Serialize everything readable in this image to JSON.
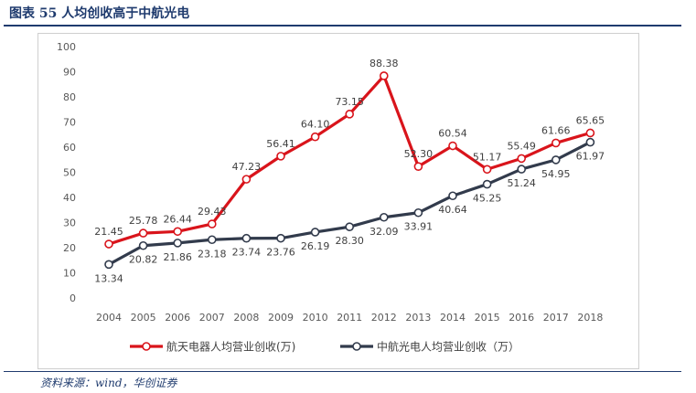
{
  "figure": {
    "title": "图表 55   人均创收高于中航光电",
    "source": "资料来源：wind，华创证券"
  },
  "colors": {
    "series_1": "#d9141b",
    "series_2": "#323b4c",
    "frame": "#1f3b6e"
  },
  "chart_data": {
    "type": "line",
    "categories": [
      "2004",
      "2005",
      "2006",
      "2007",
      "2008",
      "2009",
      "2010",
      "2011",
      "2012",
      "2013",
      "2014",
      "2015",
      "2016",
      "2017",
      "2018"
    ],
    "ylim": [
      0,
      100
    ],
    "yticks": [
      0,
      10,
      20,
      30,
      40,
      50,
      60,
      70,
      80,
      90,
      100
    ],
    "grid": false,
    "legend_position": "bottom",
    "series": [
      {
        "name": "航天电器人均营业创收(万)",
        "values": [
          21.45,
          25.78,
          26.44,
          29.43,
          47.23,
          56.41,
          64.1,
          73.15,
          88.38,
          52.3,
          60.54,
          51.17,
          55.49,
          61.66,
          65.65
        ],
        "labels": [
          "21.45",
          "25.78",
          "26.44",
          "29.43",
          "47.23",
          "56.41",
          "64.10",
          "73.15",
          "88.38",
          "52.30",
          "60.54",
          "51.17",
          "55.49",
          "61.66",
          "65.65"
        ]
      },
      {
        "name": "中航光电人均营业创收（万）",
        "values": [
          13.34,
          20.82,
          21.86,
          23.18,
          23.74,
          23.76,
          26.19,
          28.3,
          32.09,
          33.91,
          40.64,
          45.25,
          51.24,
          54.95,
          61.97
        ],
        "labels": [
          "13.34",
          "20.82",
          "21.86",
          "23.18",
          "23.74",
          "23.76",
          "26.19",
          "28.30",
          "32.09",
          "33.91",
          "40.64",
          "45.25",
          "51.24",
          "54.95",
          "61.97"
        ]
      }
    ]
  }
}
